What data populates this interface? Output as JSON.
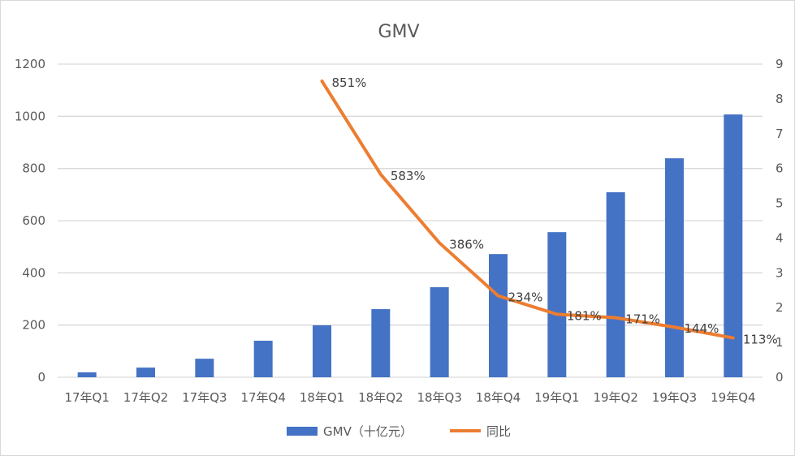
{
  "chart_data": {
    "type": "bar+line",
    "title": "GMV",
    "categories": [
      "17年Q1",
      "17年Q2",
      "17年Q3",
      "17年Q4",
      "18年Q1",
      "18年Q2",
      "18年Q3",
      "18年Q4",
      "19年Q1",
      "19年Q2",
      "19年Q3",
      "19年Q4"
    ],
    "series": [
      {
        "name": "GMV（十亿元）",
        "type": "bar",
        "axis": "left",
        "color": "#4472C4",
        "values": [
          19,
          37,
          71,
          140,
          199,
          261,
          345,
          472,
          556,
          709,
          839,
          1007
        ]
      },
      {
        "name": "同比",
        "type": "line",
        "axis": "right",
        "color": "#ED7D31",
        "values": [
          null,
          null,
          null,
          null,
          8.51,
          5.83,
          3.86,
          2.34,
          1.81,
          1.71,
          1.44,
          1.13
        ],
        "labels": [
          null,
          null,
          null,
          null,
          "851%",
          "583%",
          "386%",
          "234%",
          "181%",
          "171%",
          "144%",
          "113%"
        ]
      }
    ],
    "y_left": {
      "range": [
        0,
        1200
      ],
      "ticks": [
        "0",
        "200",
        "400",
        "600",
        "800",
        "1000",
        "1200"
      ]
    },
    "y_right": {
      "range": [
        0,
        9
      ],
      "ticks": [
        "0",
        "1",
        "2",
        "3",
        "4",
        "5",
        "6",
        "7",
        "8",
        "9"
      ]
    },
    "grid": true,
    "legend": "bottom"
  }
}
